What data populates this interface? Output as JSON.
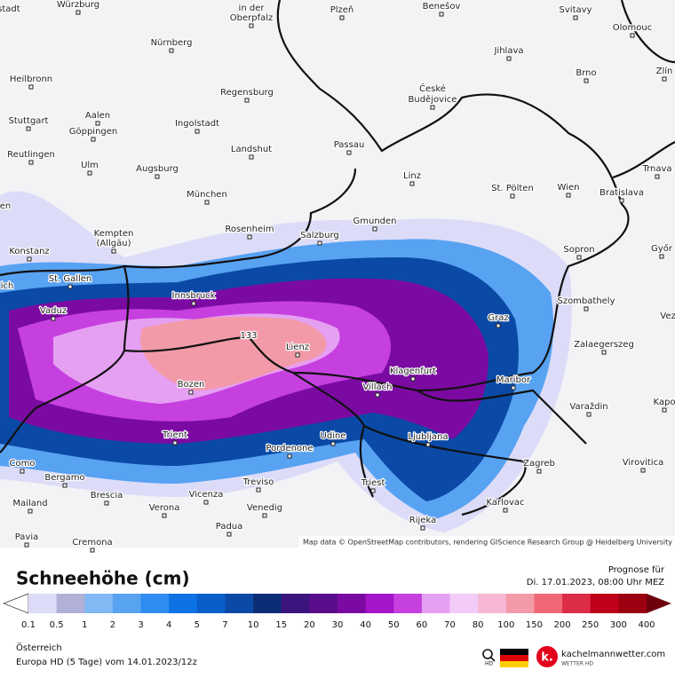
{
  "map": {
    "cities": [
      "armstadt",
      "Würzburg",
      "in der",
      "Oberpfalz",
      "Plzeň",
      "Benešov",
      "Svitavy",
      "Olomouc",
      "Nürnberg",
      "Jihlava",
      "Brno",
      "Zlín",
      "Heilbronn",
      "České",
      "Budějovice",
      "Regensburg",
      "Aalen",
      "Stuttgart",
      "Ingolstadt",
      "Göppingen",
      "Passau",
      "Landshut",
      "Reutlingen",
      "Ulm",
      "Augsburg",
      "Trnava",
      "Linz",
      "St. Pölten",
      "Wien",
      "Bratislava",
      "München",
      "en",
      "Gmunden",
      "Rosenheim",
      "Kempten",
      "(Allgäu)",
      "Salzburg",
      "Konstanz",
      "Sopron",
      "Győr",
      "St. Gallen",
      "ich",
      "Innsbruck",
      "Szombathely",
      "Vaduz",
      "Graz",
      "133",
      "Lienz",
      "Zalaegerszeg",
      "Klagenfurt",
      "Maribor",
      "Villach",
      "Bozen",
      "Varaždin",
      "Kapo",
      "Vez",
      "Trient",
      "Udine",
      "Ljubljana",
      "Pordenone",
      "Como",
      "Zagreb",
      "Virovitica",
      "Bergamo",
      "Treviso",
      "Triest",
      "Brescia",
      "Vicenza",
      "Mailand",
      "Karlovac",
      "Verona",
      "Venedig",
      "Rijeka",
      "Padua",
      "Pavia",
      "Cremona"
    ],
    "attribution": "Map data © OpenStreetMap contributors, rendering GIScience Research Group @ Heidelberg University"
  },
  "legend": {
    "title": "Schneehöhe (cm)",
    "forecast_label": "Prognose für",
    "forecast_time": "Di. 17.01.2023, 08:00 Uhr MEZ",
    "labels": [
      0.1,
      0.5,
      1,
      2,
      3,
      4,
      5,
      7,
      10,
      15,
      20,
      30,
      40,
      50,
      60,
      70,
      80,
      100,
      150,
      200,
      250,
      300,
      400
    ],
    "colors": [
      "#dcdcf8",
      "#b0b0d8",
      "#82b8f4",
      "#58a2f2",
      "#2f8cf0",
      "#0d72e4",
      "#0a5ec8",
      "#0a4aa6",
      "#0b2d76",
      "#3c147e",
      "#5a0d8a",
      "#7a0aa2",
      "#a414c8",
      "#c640e0",
      "#e6a0f2",
      "#f2ccf6",
      "#f6b8d4",
      "#f29aa8",
      "#f06878",
      "#dc2c46",
      "#be0018",
      "#9c0010"
    ],
    "low_color": "#ffffff",
    "high_color": "#6e000c"
  },
  "footer": {
    "region": "Österreich",
    "model": "Europa HD (5 Tage) vom  14.01.2023/12z",
    "hd": "HD",
    "brand": "kachelmannwetter.com",
    "brand_sub": "WETTER HD"
  }
}
